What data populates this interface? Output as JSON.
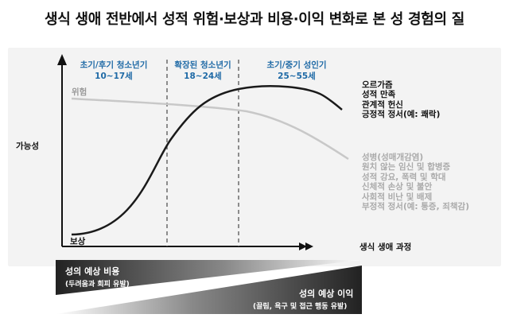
{
  "title": "생식 생애 전반에서 성적 위험·보상과 비용·이익 변화로 본 성 경험의 질",
  "stages": [
    {
      "name": "초기/후기 청소년기",
      "age": "10~17세"
    },
    {
      "name": "확장된 청소년기",
      "age": "18~24세"
    },
    {
      "name": "초기/중기 성인기",
      "age": "25~55세"
    }
  ],
  "y_axis_label": "가능성",
  "x_axis_label": "생식 생애 과정",
  "curve_labels": {
    "risk": "위험",
    "benefit": "보상"
  },
  "benefit_outcomes": [
    "오르가즘",
    "성적 만족",
    "관계적 헌신",
    "긍정적 정서(예: 쾌락)"
  ],
  "risk_outcomes": [
    "성병(성매개감염)",
    "원치 않는 임신 및 합병증",
    "성적 강요, 폭력 및 학대",
    "신체적 손상 및 불안",
    "사회적 비난 및 배제",
    "부정적 정서(예: 통증, 죄책감)"
  ],
  "cost_bar": {
    "label": "성의 예상 비용",
    "sub": "(두려움과 회피 유발)"
  },
  "benefit_bar": {
    "label": "성의 예상 이익",
    "sub": "(끌림, 욕구 및 접근 행동 유발)"
  },
  "colors": {
    "stage_text": "#1f6aa6",
    "risk_curve": "#c8c8c8",
    "benefit_curve": "#1a1a1a"
  }
}
